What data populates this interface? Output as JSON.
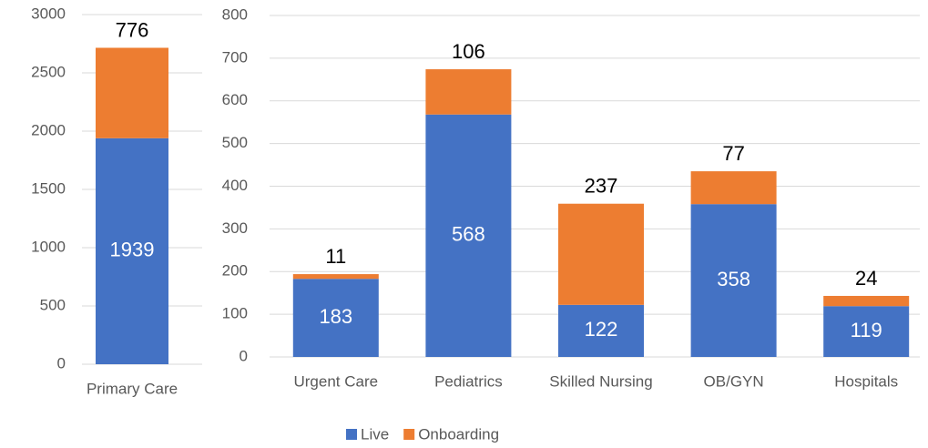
{
  "chart_data": [
    {
      "type": "stacked_bar",
      "categories": [
        "Primary Care"
      ],
      "series": [
        {
          "color": "#4472c4",
          "values": [
            1939
          ]
        },
        {
          "color": "#ed7d31",
          "values": [
            776
          ]
        }
      ],
      "ylim": [
        0,
        3000
      ],
      "yticks": [
        0,
        500,
        1000,
        1500,
        2000,
        2500,
        3000
      ],
      "grid": true
    },
    {
      "type": "stacked_bar",
      "categories": [
        "Urgent Care",
        "Pediatrics",
        "Skilled Nursing",
        "OB/GYN",
        "Hospitals"
      ],
      "series": [
        {
          "name": "Live",
          "color": "#4472c4",
          "values": [
            183,
            568,
            122,
            358,
            119
          ]
        },
        {
          "name": "Onboarding",
          "color": "#ed7d31",
          "values": [
            11,
            106,
            237,
            77,
            24
          ]
        }
      ],
      "ylim": [
        0,
        800
      ],
      "yticks": [
        0,
        100,
        200,
        300,
        400,
        500,
        600,
        700,
        800
      ],
      "grid": true,
      "legend": "bottom"
    }
  ]
}
